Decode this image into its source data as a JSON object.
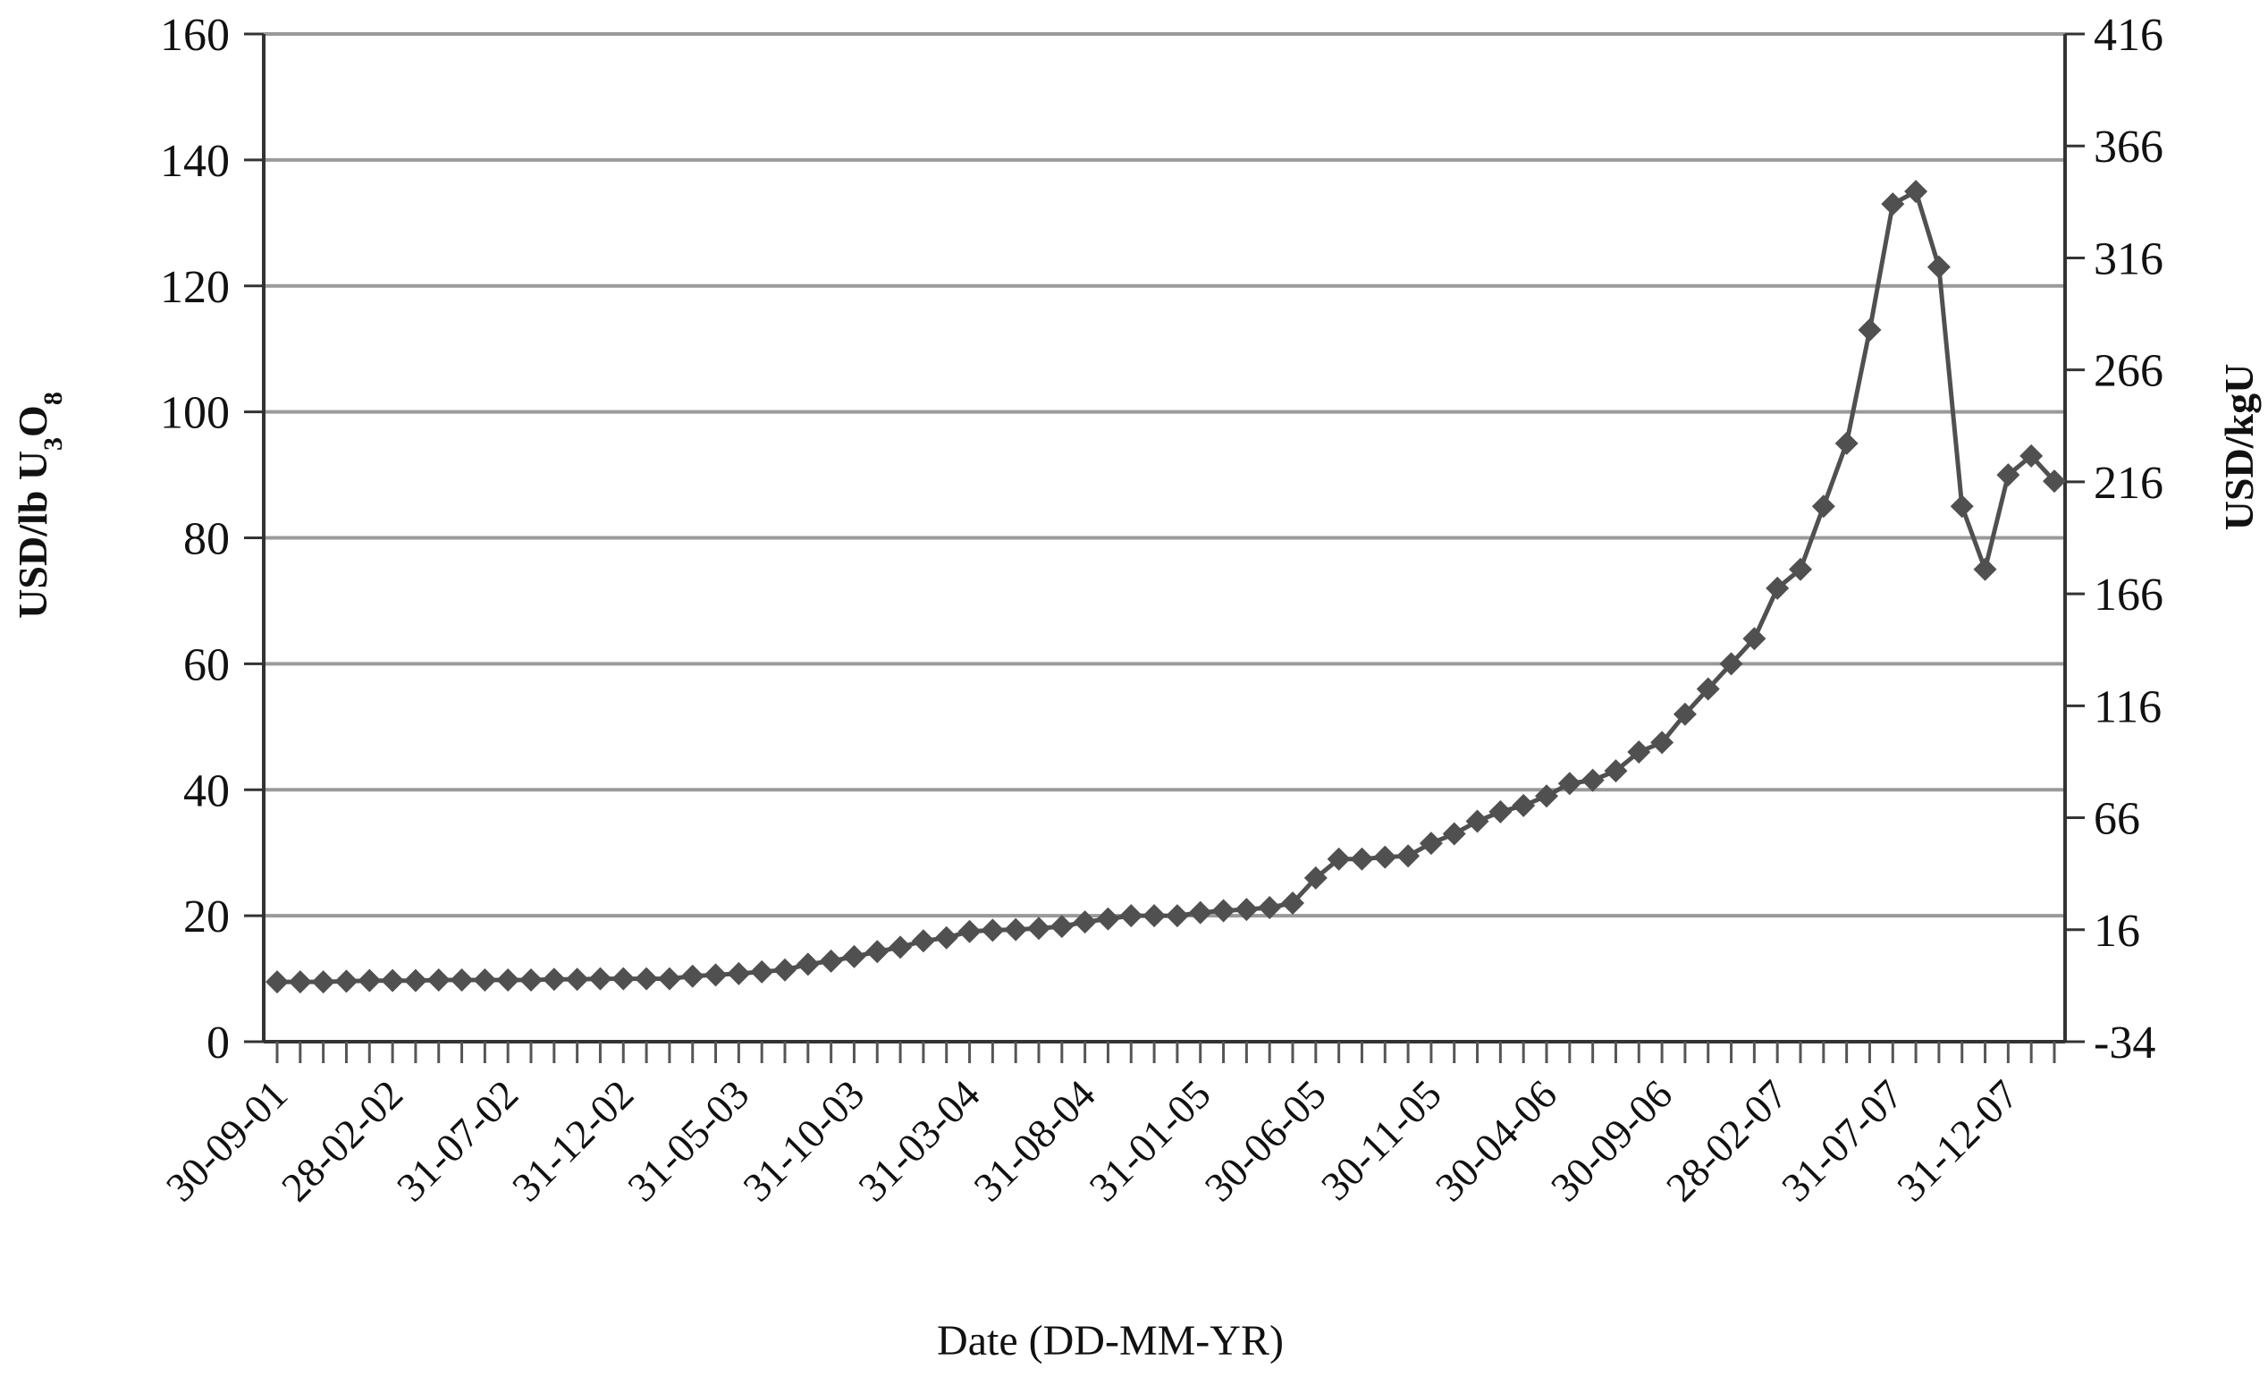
{
  "chart_data": {
    "type": "line",
    "title": "",
    "xlabel": "Date (DD-MM-YR)",
    "ylabel": "USD/lb U3O8",
    "ylabel_parts": {
      "a": "USD/lb U",
      "sub1": "3",
      "b": "O",
      "sub2": "8"
    },
    "y2label": "USD/kgU",
    "ylim": [
      0,
      160
    ],
    "yticks": [
      "0",
      "20",
      "40",
      "60",
      "80",
      "100",
      "120",
      "140",
      "160"
    ],
    "y2ticks": [
      "-34",
      "16",
      "66",
      "116",
      "166",
      "216",
      "266",
      "316",
      "366",
      "416"
    ],
    "xticks": [
      "30-09-01",
      "28-02-02",
      "31-07-02",
      "31-12-02",
      "31-05-03",
      "31-10-03",
      "31-03-04",
      "31-08-04",
      "31-01-05",
      "30-06-05",
      "30-11-05",
      "30-04-06",
      "30-09-06",
      "28-02-07",
      "31-07-07",
      "31-12-07"
    ],
    "grid": true,
    "line_color": "#505050",
    "series": [
      {
        "values": [
          9.5,
          9.5,
          9.5,
          9.6,
          9.7,
          9.7,
          9.7,
          9.8,
          9.8,
          9.8,
          9.8,
          9.8,
          9.9,
          9.9,
          10.0,
          10.0,
          10.0,
          10.0,
          10.4,
          10.6,
          10.8,
          11.1,
          11.4,
          12.3,
          12.8,
          13.5,
          14.3,
          15.0,
          16.0,
          16.5,
          17.5,
          17.7,
          17.8,
          18.0,
          18.3,
          19.0,
          19.5,
          20.0,
          20.0,
          20.0,
          20.5,
          20.8,
          21.0,
          21.3,
          22.0,
          26.0,
          29.0,
          29.0,
          29.3,
          29.5,
          31.5,
          33.0,
          35.0,
          36.5,
          37.5,
          39.0,
          41.0,
          41.5,
          43.0,
          46.0,
          47.5,
          52.0,
          56.0,
          60.0,
          64.0,
          72.0,
          75.0,
          85.0,
          95.0,
          113.0,
          133.0,
          135.0,
          123.0,
          85.0,
          75.0,
          90.0,
          93.0,
          89.0
        ]
      }
    ]
  }
}
